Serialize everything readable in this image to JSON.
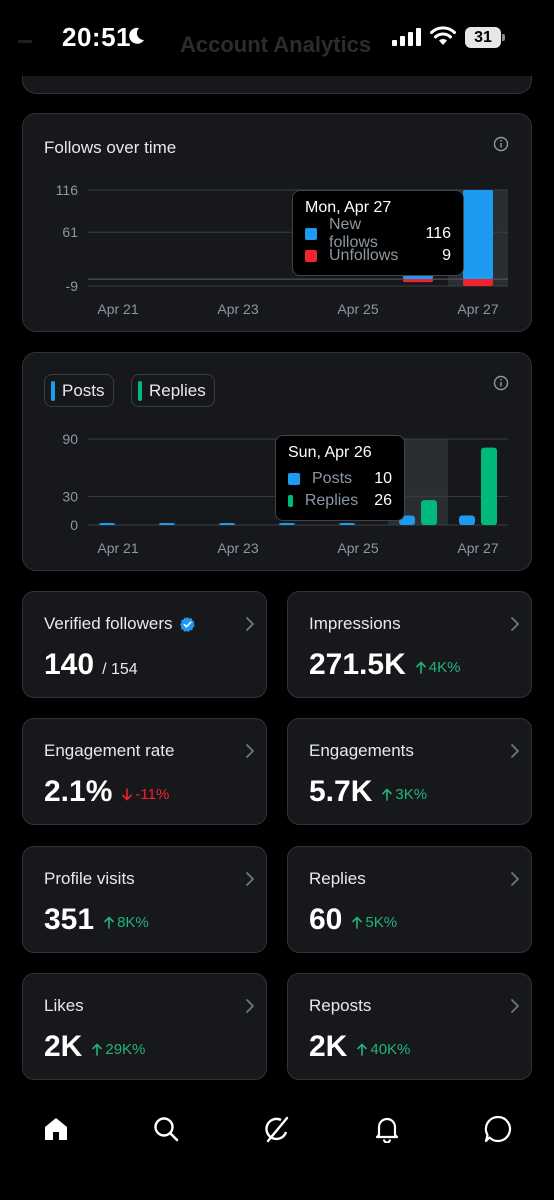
{
  "status_bar": {
    "time": "20:51",
    "battery": "31",
    "faded_title": "Account Analytics"
  },
  "follows_chart": {
    "title": "Follows over time",
    "tooltip": {
      "date": "Mon, Apr 27",
      "rows": [
        {
          "label": "New follows",
          "value": "116",
          "color": "#1d9bf0"
        },
        {
          "label": "Unfollows",
          "value": "9",
          "color": "#f4212e"
        }
      ]
    }
  },
  "posts_chart": {
    "legend": [
      {
        "label": "Posts",
        "color": "#1d9bf0"
      },
      {
        "label": "Replies",
        "color": "#00ba7c"
      }
    ],
    "tooltip": {
      "date": "Sun, Apr 26",
      "rows": [
        {
          "label": "Posts",
          "value": "10",
          "color": "#1d9bf0"
        },
        {
          "label": "Replies",
          "value": "26",
          "color": "#00ba7c"
        }
      ]
    }
  },
  "chart_data": [
    {
      "type": "bar",
      "title": "Follows over time",
      "categories": [
        "Apr 21",
        "Apr 22",
        "Apr 23",
        "Apr 24",
        "Apr 25",
        "Apr 26",
        "Apr 27"
      ],
      "x_tick_labels": [
        "Apr 21",
        "Apr 23",
        "Apr 25",
        "Apr 27"
      ],
      "y_tick_labels": [
        "116",
        "61",
        "-9"
      ],
      "ylim": [
        -9,
        116
      ],
      "series": [
        {
          "name": "New follows",
          "values": [
            0,
            0,
            0,
            0,
            0,
            18,
            116
          ],
          "color": "#1d9bf0"
        },
        {
          "name": "Unfollows",
          "values": [
            0,
            0,
            0,
            0,
            0,
            1,
            9
          ],
          "color": "#f4212e"
        }
      ],
      "highlighted_category": "Apr 27",
      "grid": true
    },
    {
      "type": "bar",
      "categories": [
        "Apr 21",
        "Apr 22",
        "Apr 23",
        "Apr 24",
        "Apr 25",
        "Apr 26",
        "Apr 27"
      ],
      "x_tick_labels": [
        "Apr 21",
        "Apr 23",
        "Apr 25",
        "Apr 27"
      ],
      "y_tick_labels": [
        "90",
        "30",
        "0"
      ],
      "ylim": [
        0,
        90
      ],
      "series": [
        {
          "name": "Posts",
          "values": [
            1,
            1,
            1,
            1,
            1,
            10,
            10
          ],
          "color": "#1d9bf0"
        },
        {
          "name": "Replies",
          "values": [
            0,
            0,
            0,
            0,
            0,
            26,
            81
          ],
          "color": "#00ba7c"
        }
      ],
      "highlighted_category": "Apr 26",
      "grid": true
    }
  ],
  "stats": [
    {
      "label": "Verified followers",
      "value": "140",
      "sub": "/ 154",
      "verified": true
    },
    {
      "label": "Impressions",
      "value": "271.5K",
      "delta": "4K%",
      "direction": "up"
    },
    {
      "label": "Engagement rate",
      "value": "2.1%",
      "delta": "-11%",
      "direction": "down"
    },
    {
      "label": "Engagements",
      "value": "5.7K",
      "delta": "3K%",
      "direction": "up"
    },
    {
      "label": "Profile visits",
      "value": "351",
      "delta": "8K%",
      "direction": "up"
    },
    {
      "label": "Replies",
      "value": "60",
      "delta": "5K%",
      "direction": "up"
    },
    {
      "label": "Likes",
      "value": "2K",
      "delta": "29K%",
      "direction": "up"
    },
    {
      "label": "Reposts",
      "value": "2K",
      "delta": "40K%",
      "direction": "up"
    }
  ],
  "bottom_nav": [
    {
      "name": "home-icon"
    },
    {
      "name": "search-icon"
    },
    {
      "name": "grok-icon"
    },
    {
      "name": "notifications-icon"
    },
    {
      "name": "messages-icon"
    }
  ]
}
